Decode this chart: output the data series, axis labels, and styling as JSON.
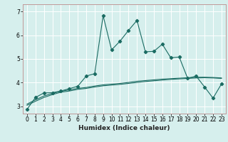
{
  "xlabel": "Humidex (Indice chaleur)",
  "background_color": "#d6efed",
  "grid_color": "#c8e0de",
  "line_color": "#1a6b62",
  "xlim": [
    -0.5,
    23.5
  ],
  "ylim": [
    2.7,
    7.3
  ],
  "x_ticks": [
    0,
    1,
    2,
    3,
    4,
    5,
    6,
    7,
    8,
    9,
    10,
    11,
    12,
    13,
    14,
    15,
    16,
    17,
    18,
    19,
    20,
    21,
    22,
    23
  ],
  "y_ticks": [
    3,
    4,
    5,
    6,
    7
  ],
  "main_line": [
    2.88,
    3.38,
    3.57,
    3.58,
    3.65,
    3.75,
    3.85,
    4.28,
    4.38,
    6.82,
    5.38,
    5.75,
    6.2,
    6.62,
    5.3,
    5.32,
    5.62,
    5.05,
    5.08,
    4.18,
    4.28,
    3.82,
    3.35,
    3.95
  ],
  "smooth_line1": [
    3.05,
    3.22,
    3.38,
    3.5,
    3.6,
    3.65,
    3.72,
    3.76,
    3.82,
    3.87,
    3.9,
    3.93,
    3.97,
    4.01,
    4.05,
    4.08,
    4.11,
    4.14,
    4.16,
    4.18,
    4.2,
    4.21,
    4.2,
    4.18
  ],
  "smooth_line2": [
    3.1,
    3.28,
    3.44,
    3.55,
    3.64,
    3.7,
    3.76,
    3.8,
    3.86,
    3.91,
    3.94,
    3.97,
    4.01,
    4.06,
    4.09,
    4.12,
    4.15,
    4.17,
    4.19,
    4.21,
    4.23,
    4.23,
    4.22,
    4.2
  ],
  "spine_color": "#c09898",
  "xlabel_fontsize": 6.5,
  "tick_fontsize": 5.5
}
